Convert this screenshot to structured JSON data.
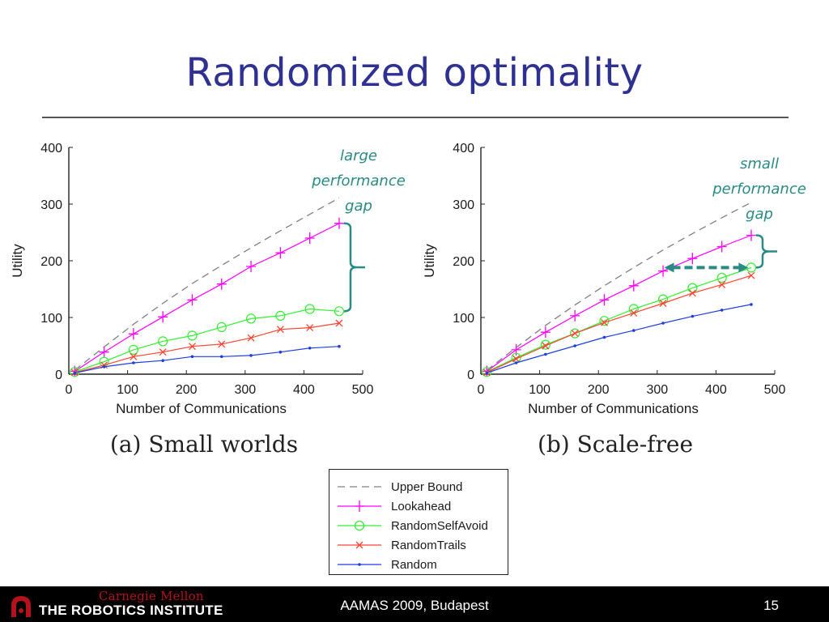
{
  "slide": {
    "title": "Randomized optimality",
    "footer": {
      "venue": "AAMAS 2009, Budapest",
      "page_number": "15",
      "logo_text_top": "Carnegie Mellon",
      "logo_text_bottom": "THE ROBOTICS INSTITUTE"
    }
  },
  "colors": {
    "title": "#2e3192",
    "annotation": "#2a8a84",
    "upper_bound": "#808080",
    "lookahead": "#ff00ff",
    "randomselfavoid": "#33ee33",
    "randomtrails": "#ff4433",
    "random": "#1f3fdd"
  },
  "legend": [
    {
      "name": "Upper Bound",
      "style": "dashed",
      "marker": "none",
      "color": "#808080"
    },
    {
      "name": "Lookahead",
      "style": "solid",
      "marker": "plus",
      "color": "#ff00ff"
    },
    {
      "name": "RandomSelfAvoid",
      "style": "solid",
      "marker": "circle",
      "color": "#33ee33"
    },
    {
      "name": "RandomTrails",
      "style": "solid",
      "marker": "x",
      "color": "#ff4433"
    },
    {
      "name": "Random",
      "style": "solid",
      "marker": "dot",
      "color": "#1f3fdd"
    }
  ],
  "chart_data": [
    {
      "type": "line",
      "caption": "(a) Small worlds",
      "xlabel": "Number of Communications",
      "ylabel": "Utility",
      "xlim": [
        0,
        500
      ],
      "ylim": [
        0,
        400
      ],
      "xticks": [
        0,
        100,
        200,
        300,
        400,
        500
      ],
      "yticks": [
        0,
        100,
        200,
        300,
        400
      ],
      "grid": false,
      "annotation": [
        "large",
        "performance",
        "gap"
      ],
      "series": [
        {
          "name": "Upper Bound",
          "x": [
            10,
            60,
            110,
            160,
            210,
            260,
            310,
            360,
            410,
            460
          ],
          "y": [
            7,
            48,
            88,
            125,
            160,
            192,
            223,
            253,
            282,
            311
          ]
        },
        {
          "name": "Lookahead",
          "x": [
            10,
            60,
            110,
            160,
            210,
            260,
            310,
            360,
            410,
            460
          ],
          "y": [
            5,
            39,
            71,
            101,
            131,
            159,
            190,
            214,
            240,
            266
          ]
        },
        {
          "name": "RandomSelfAvoid",
          "x": [
            10,
            60,
            110,
            160,
            210,
            260,
            310,
            360,
            410,
            460
          ],
          "y": [
            4,
            22,
            43,
            58,
            68,
            83,
            98,
            103,
            115,
            111
          ]
        },
        {
          "name": "RandomTrails",
          "x": [
            10,
            60,
            110,
            160,
            210,
            260,
            310,
            360,
            410,
            460
          ],
          "y": [
            3,
            16,
            31,
            39,
            49,
            53,
            64,
            79,
            82,
            90
          ]
        },
        {
          "name": "Random",
          "x": [
            10,
            60,
            110,
            160,
            210,
            260,
            310,
            360,
            410,
            460
          ],
          "y": [
            2,
            13,
            20,
            24,
            31,
            31,
            33,
            39,
            46,
            49
          ]
        }
      ]
    },
    {
      "type": "line",
      "caption": "(b) Scale-free",
      "xlabel": "Number of Communications",
      "ylabel": "Utility",
      "xlim": [
        0,
        500
      ],
      "ylim": [
        0,
        400
      ],
      "xticks": [
        0,
        100,
        200,
        300,
        400,
        500
      ],
      "yticks": [
        0,
        100,
        200,
        300,
        400
      ],
      "grid": false,
      "annotation": [
        "small",
        "performance",
        "gap"
      ],
      "series": [
        {
          "name": "Upper Bound",
          "x": [
            10,
            60,
            110,
            160,
            210,
            260,
            310,
            360,
            410,
            460
          ],
          "y": [
            7,
            47,
            86,
            122,
            156,
            188,
            219,
            248,
            276,
            303
          ]
        },
        {
          "name": "Lookahead",
          "x": [
            10,
            60,
            110,
            160,
            210,
            260,
            310,
            360,
            410,
            460
          ],
          "y": [
            5,
            43,
            74,
            103,
            131,
            156,
            182,
            204,
            225,
            245
          ]
        },
        {
          "name": "RandomSelfAvoid",
          "x": [
            10,
            60,
            110,
            160,
            210,
            260,
            310,
            360,
            410,
            460
          ],
          "y": [
            4,
            29,
            52,
            72,
            94,
            115,
            132,
            152,
            170,
            188
          ]
        },
        {
          "name": "RandomTrails",
          "x": [
            10,
            60,
            110,
            160,
            210,
            260,
            310,
            360,
            410,
            460
          ],
          "y": [
            3,
            27,
            50,
            72,
            91,
            108,
            125,
            143,
            158,
            174
          ]
        },
        {
          "name": "Random",
          "x": [
            10,
            60,
            110,
            160,
            210,
            260,
            310,
            360,
            410,
            460
          ],
          "y": [
            2,
            20,
            35,
            50,
            65,
            77,
            90,
            102,
            113,
            123
          ]
        }
      ]
    }
  ]
}
